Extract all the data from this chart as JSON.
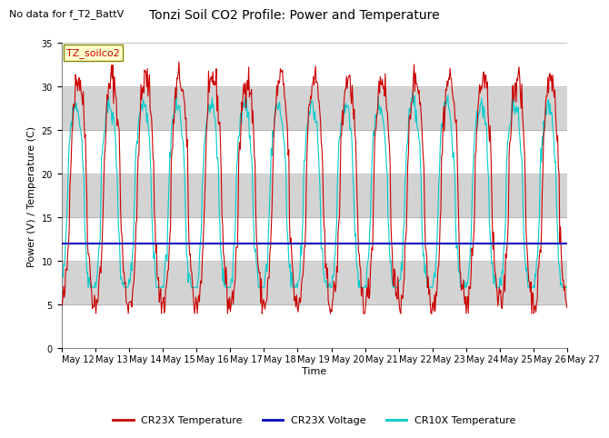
{
  "title": "Tonzi Soil CO2 Profile: Power and Temperature",
  "subtitle": "No data for f_T2_BattV",
  "ylabel": "Power (V) / Temperature (C)",
  "xlabel": "Time",
  "ylim": [
    0,
    35
  ],
  "voltage_value": 12.0,
  "cr23x_color": "#cc0000",
  "voltage_color": "#0000bb",
  "cr10x_color": "#00cccc",
  "legend_box_label": "TZ_soilco2",
  "legend_labels": [
    "CR23X Temperature",
    "CR23X Voltage",
    "CR10X Temperature"
  ],
  "bg_band_color": "#d3d3d3",
  "bg_white": "#ffffff",
  "x_tick_labels": [
    "May 12",
    "May 13",
    "May 14",
    "May 15",
    "May 16",
    "May 17",
    "May 18",
    "May 19",
    "May 20",
    "May 21",
    "May 22",
    "May 23",
    "May 24",
    "May 25",
    "May 26",
    "May 27"
  ],
  "title_fontsize": 10,
  "subtitle_fontsize": 8,
  "axis_label_fontsize": 8,
  "tick_fontsize": 7
}
